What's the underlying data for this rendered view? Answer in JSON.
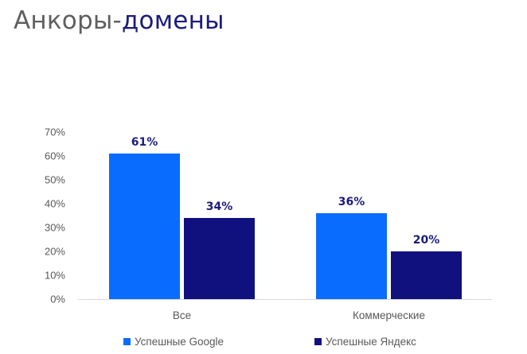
{
  "title": {
    "part1": "Анкоры-",
    "part2": "домены"
  },
  "colors": {
    "text": "#595959",
    "title_accent": "#1c1c7a",
    "axis": "#d9d9d9",
    "data_label": "#1c1c7a"
  },
  "chart_data": {
    "type": "bar",
    "title": "Анкоры-домены",
    "categories": [
      "Все",
      "Коммерческие"
    ],
    "series": [
      {
        "name": "Успешные Google",
        "values": [
          61,
          36
        ],
        "color": "#0a6cff"
      },
      {
        "name": "Успешные Яндекс",
        "values": [
          34,
          20
        ],
        "color": "#10107f"
      }
    ],
    "data_labels": [
      [
        "61%",
        "36%"
      ],
      [
        "34%",
        "20%"
      ]
    ],
    "y_ticks": [
      "0%",
      "10%",
      "20%",
      "30%",
      "40%",
      "50%",
      "60%",
      "70%"
    ],
    "ylim": [
      0,
      70
    ],
    "unit": "%",
    "grid": false,
    "legend_position": "bottom"
  }
}
